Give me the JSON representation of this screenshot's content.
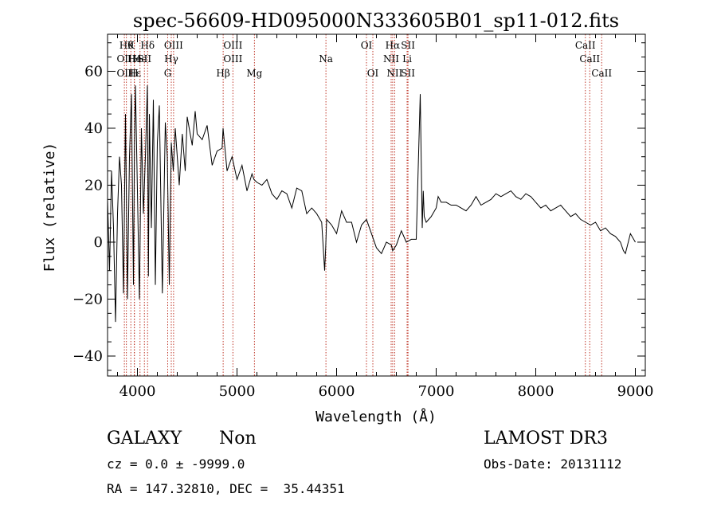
{
  "chart_data": {
    "type": "line",
    "title": "spec-56609-HD095000N333605B01_sp11-012.fits",
    "xlabel": "Wavelength (Å)",
    "ylabel": "Flux (relative)",
    "xlim": [
      3700,
      9100
    ],
    "ylim": [
      -47,
      73
    ],
    "xticks": [
      4000,
      5000,
      6000,
      7000,
      8000,
      9000
    ],
    "yticks": [
      -40,
      -20,
      0,
      20,
      40,
      60
    ],
    "series": [
      {
        "name": "spectrum",
        "x": [
          3700,
          3720,
          3740,
          3760,
          3780,
          3800,
          3820,
          3840,
          3860,
          3880,
          3890,
          3900,
          3920,
          3940,
          3960,
          3970,
          3980,
          4000,
          4020,
          4040,
          4060,
          4080,
          4100,
          4110,
          4120,
          4140,
          4160,
          4180,
          4200,
          4220,
          4250,
          4280,
          4300,
          4320,
          4340,
          4360,
          4380,
          4400,
          4420,
          4450,
          4480,
          4500,
          4520,
          4550,
          4580,
          4600,
          4650,
          4700,
          4750,
          4800,
          4850,
          4860,
          4900,
          4950,
          5000,
          5050,
          5100,
          5150,
          5170,
          5200,
          5250,
          5300,
          5350,
          5400,
          5450,
          5500,
          5550,
          5600,
          5650,
          5700,
          5750,
          5800,
          5850,
          5880,
          5890,
          5900,
          5950,
          6000,
          6050,
          6100,
          6150,
          6200,
          6250,
          6300,
          6350,
          6400,
          6450,
          6500,
          6550,
          6563,
          6600,
          6650,
          6700,
          6750,
          6800,
          6840,
          6860,
          6870,
          6880,
          6900,
          6950,
          7000,
          7020,
          7050,
          7100,
          7150,
          7200,
          7250,
          7300,
          7350,
          7400,
          7450,
          7500,
          7550,
          7600,
          7650,
          7700,
          7750,
          7800,
          7850,
          7900,
          7950,
          8000,
          8050,
          8100,
          8150,
          8200,
          8250,
          8300,
          8350,
          8400,
          8450,
          8500,
          8550,
          8600,
          8650,
          8700,
          8750,
          8800,
          8850,
          8880,
          8900,
          8950,
          9000
        ],
        "y": [
          15,
          -10,
          25,
          5,
          -28,
          10,
          30,
          20,
          -18,
          45,
          12,
          -20,
          30,
          52,
          -15,
          35,
          55,
          18,
          -20,
          40,
          10,
          30,
          55,
          -12,
          45,
          5,
          50,
          -15,
          35,
          48,
          -18,
          42,
          30,
          -15,
          35,
          25,
          40,
          30,
          20,
          38,
          25,
          44,
          40,
          34,
          46,
          38,
          36,
          41,
          27,
          32,
          33,
          40,
          25,
          30,
          22,
          27,
          18,
          24,
          22,
          21,
          20,
          22,
          17,
          15,
          18,
          17,
          12,
          19,
          18,
          10,
          12,
          10,
          7,
          -10,
          -2,
          8,
          6,
          3,
          11,
          7,
          7,
          0,
          6,
          8,
          3,
          -2,
          -4,
          0,
          -1,
          -3,
          -1,
          4,
          0,
          1,
          1,
          52,
          5,
          18,
          9,
          7,
          9,
          12,
          16,
          14,
          14,
          13,
          13,
          12,
          11,
          13,
          16,
          13,
          14,
          15,
          17,
          16,
          17,
          18,
          16,
          15,
          17,
          16,
          14,
          12,
          13,
          11,
          12,
          13,
          11,
          9,
          10,
          8,
          7,
          6,
          7,
          4,
          5,
          3,
          2,
          0,
          -3,
          -4,
          3,
          0
        ]
      }
    ],
    "line_labels": [
      {
        "x": 3869,
        "rows": [
          {
            "r": 2,
            "t": "OII"
          },
          {
            "r": 3,
            "t": "OII"
          }
        ]
      },
      {
        "x": 3889,
        "rows": [
          {
            "r": 1,
            "t": "Hθ"
          }
        ]
      },
      {
        "x": 3970,
        "rows": [
          {
            "r": 2,
            "t": "He"
          },
          {
            "r": 3,
            "t": "Hε"
          }
        ]
      },
      {
        "x": 4026,
        "rows": [
          {
            "r": 2,
            "t": "He"
          }
        ]
      },
      {
        "x": 3934,
        "rows": [
          {
            "r": 1,
            "t": "K"
          }
        ]
      },
      {
        "x": 3968,
        "rows": [
          {
            "r": 3,
            "t": "H"
          }
        ]
      },
      {
        "x": 4070,
        "rows": [
          {
            "r": 2,
            "t": "SII"
          }
        ]
      },
      {
        "x": 4102,
        "rows": [
          {
            "r": 1,
            "t": "Hδ"
          }
        ]
      },
      {
        "x": 4340,
        "rows": [
          {
            "r": 2,
            "t": "Hγ"
          }
        ]
      },
      {
        "x": 4304,
        "rows": [
          {
            "r": 3,
            "t": "G"
          }
        ]
      },
      {
        "x": 4363,
        "rows": [
          {
            "r": 1,
            "t": "OIII"
          }
        ]
      },
      {
        "x": 4861,
        "rows": [
          {
            "r": 3,
            "t": "Hβ"
          }
        ]
      },
      {
        "x": 4959,
        "rows": [
          {
            "r": 1,
            "t": "OIII"
          },
          {
            "r": 2,
            "t": "OIII"
          }
        ]
      },
      {
        "x": 5175,
        "rows": [
          {
            "r": 3,
            "t": "Mg"
          }
        ]
      },
      {
        "x": 5893,
        "rows": [
          {
            "r": 2,
            "t": "Na"
          }
        ]
      },
      {
        "x": 6300,
        "rows": [
          {
            "r": 1,
            "t": "OI"
          }
        ]
      },
      {
        "x": 6364,
        "rows": [
          {
            "r": 3,
            "t": "OI"
          }
        ]
      },
      {
        "x": 6563,
        "rows": [
          {
            "r": 1,
            "t": "Hα"
          }
        ]
      },
      {
        "x": 6548,
        "rows": [
          {
            "r": 2,
            "t": "NII"
          }
        ]
      },
      {
        "x": 6583,
        "rows": [
          {
            "r": 3,
            "t": "NII"
          }
        ]
      },
      {
        "x": 6717,
        "rows": [
          {
            "r": 1,
            "t": "SII"
          },
          {
            "r": 3,
            "t": "SII"
          }
        ]
      },
      {
        "x": 6708,
        "rows": [
          {
            "r": 2,
            "t": "Li"
          }
        ]
      },
      {
        "x": 8498,
        "rows": [
          {
            "r": 1,
            "t": "CaII"
          }
        ]
      },
      {
        "x": 8542,
        "rows": [
          {
            "r": 2,
            "t": "CaII"
          }
        ]
      },
      {
        "x": 8662,
        "rows": [
          {
            "r": 3,
            "t": "CaII"
          }
        ]
      }
    ]
  },
  "info": {
    "class": "GALAXY",
    "subclass": "Non",
    "redshift": "cz = 0.0 ± -9999.0",
    "coords": "RA = 147.32810, DEC =  35.44351",
    "survey": "LAMOST DR3",
    "obs_date": "Obs-Date: 20131112"
  }
}
